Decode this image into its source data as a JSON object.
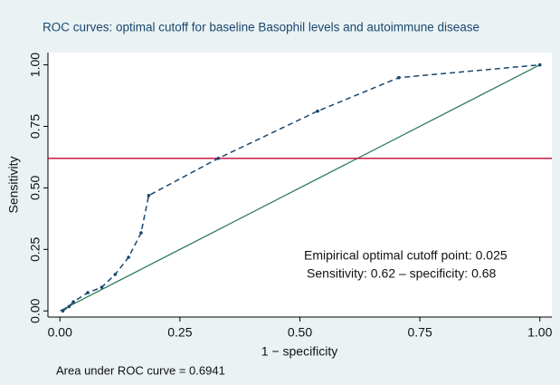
{
  "chart_data": {
    "type": "line",
    "title": "ROC curves: optimal cutoff for baseline Basophil levels and autoimmune disease",
    "x_label": "1 − specificity",
    "y_label": "Sensitivity",
    "note": "Area under ROC curve = 0.6941",
    "annotations": [
      "Emipirical optimal cutoff point: 0.025",
      "Sensitivity: 0.62 – specificity: 0.68"
    ],
    "x": [
      0.006,
      0.019,
      0.028,
      0.058,
      0.087,
      0.115,
      0.143,
      0.169,
      0.185,
      0.33,
      0.537,
      0.706,
      1
    ],
    "series": [
      {
        "color": "#1a476f",
        "dashed": true,
        "values": [
          0,
          0.018,
          0.037,
          0.074,
          0.096,
          0.148,
          0.218,
          0.317,
          0.469,
          0.62,
          0.812,
          0.948,
          1
        ]
      }
    ],
    "reference_line": {
      "x": [
        0,
        1
      ],
      "values": [
        0,
        1
      ],
      "color": "#2e7d5b"
    },
    "hline": {
      "value": 0.62,
      "color": "#c10534"
    },
    "xlim": [
      -0.025,
      1.025
    ],
    "ylim": [
      -0.025,
      1.05
    ],
    "xticks": [
      {
        "value": 0,
        "label": "0.00"
      },
      {
        "value": 0.25,
        "label": "0.25"
      },
      {
        "value": 0.5,
        "label": "0.50"
      },
      {
        "value": 0.75,
        "label": "0.75"
      },
      {
        "value": 1,
        "label": "1.00"
      }
    ],
    "yticks": [
      {
        "value": 0,
        "label": "0.00"
      },
      {
        "value": 0.25,
        "label": "0.25"
      },
      {
        "value": 0.5,
        "label": "0.50"
      },
      {
        "value": 0.75,
        "label": "0.75"
      },
      {
        "value": 1,
        "label": "1.00"
      }
    ],
    "grid": false
  }
}
